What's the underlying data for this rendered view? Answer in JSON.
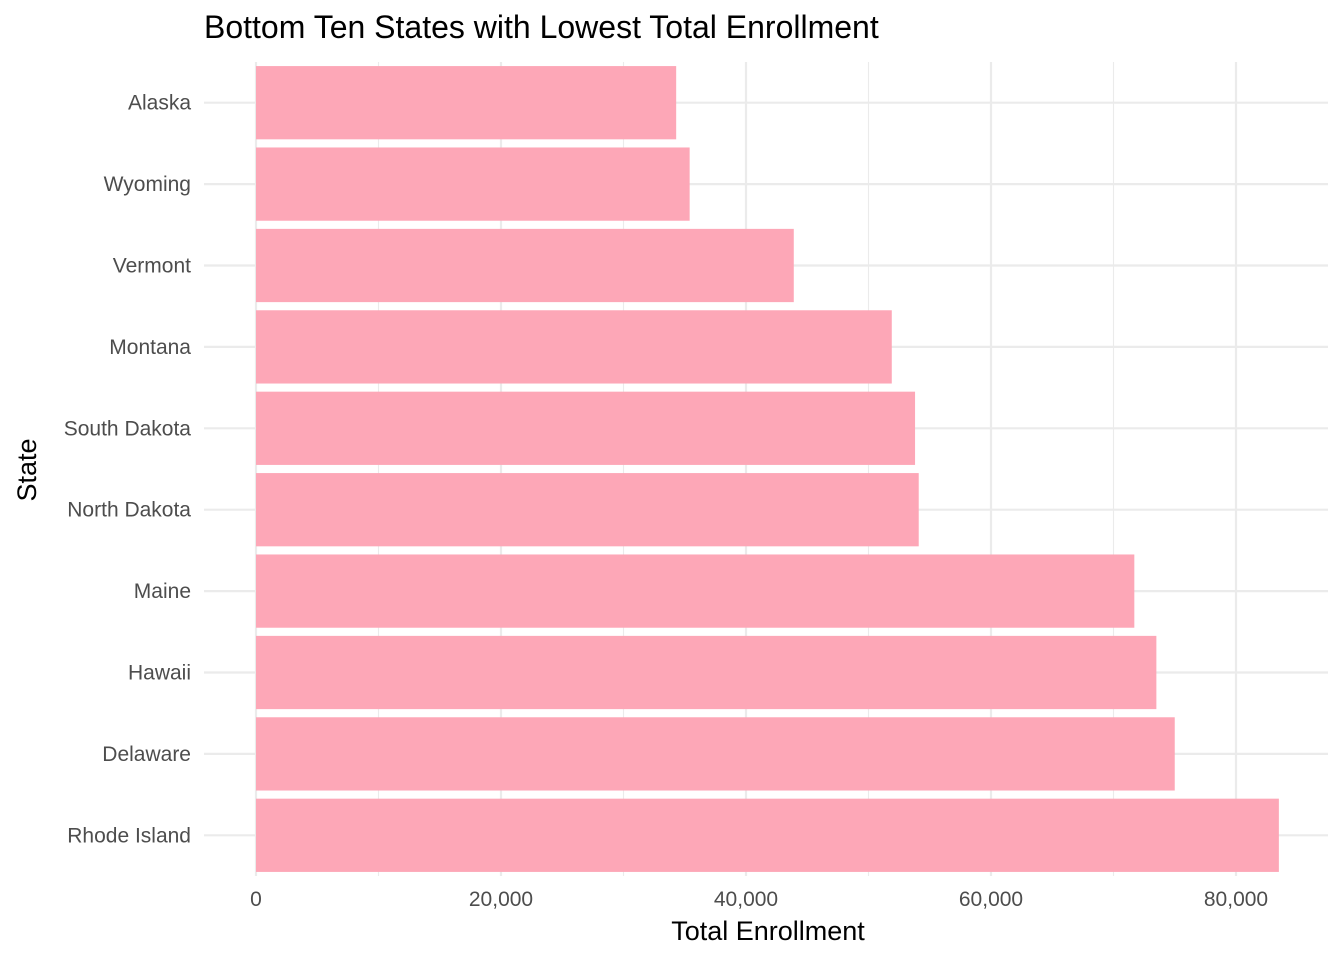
{
  "chart_data": {
    "type": "bar",
    "orientation": "horizontal",
    "title": "Bottom Ten States with Lowest Total Enrollment",
    "xlabel": "Total Enrollment",
    "ylabel": "State",
    "categories": [
      "Alaska",
      "Wyoming",
      "Vermont",
      "Montana",
      "South Dakota",
      "North Dakota",
      "Maine",
      "Hawaii",
      "Delaware",
      "Rhode Island"
    ],
    "values": [
      34300,
      35400,
      43900,
      51900,
      53800,
      54100,
      71700,
      73500,
      75000,
      83500
    ],
    "xlim": [
      0,
      87000
    ],
    "x_ticks": [
      0,
      20000,
      40000,
      60000,
      80000
    ],
    "x_tick_labels": [
      "0",
      "20,000",
      "40,000",
      "60,000",
      "80,000"
    ],
    "bar_color": "#fda7b7",
    "grid": true,
    "legend": "none"
  }
}
